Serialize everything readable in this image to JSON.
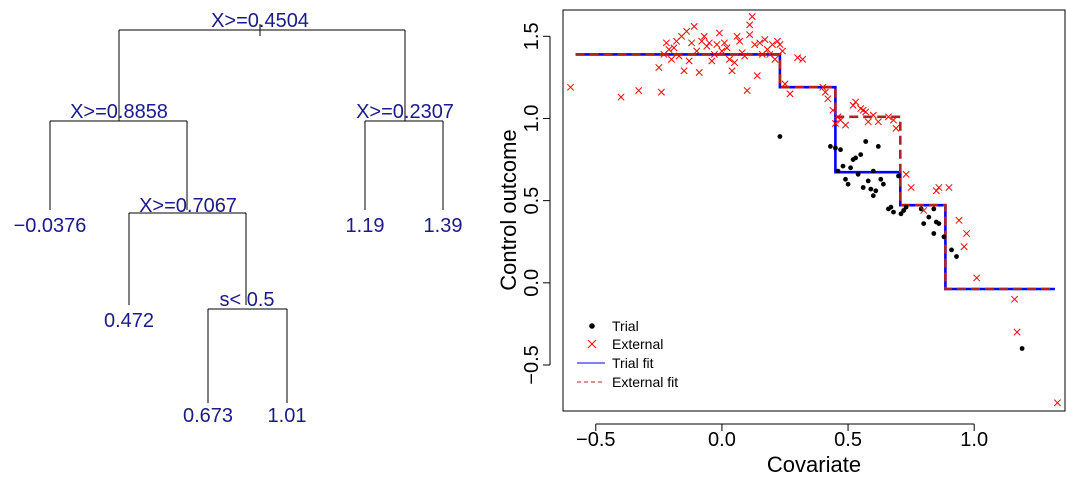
{
  "chart_data": [
    {
      "type": "tree",
      "splits": [
        {
          "id": "n1",
          "label": "X>=0.4504"
        },
        {
          "id": "n2",
          "label": "X>=0.8858"
        },
        {
          "id": "n3",
          "label": "X>=0.2307"
        },
        {
          "id": "n4",
          "label": "X>=0.7067"
        },
        {
          "id": "n5",
          "label": "s< 0.5"
        }
      ],
      "leaves": [
        {
          "id": "l1",
          "label": "−0.0376"
        },
        {
          "id": "l2",
          "label": "0.472"
        },
        {
          "id": "l3",
          "label": "0.673"
        },
        {
          "id": "l4",
          "label": "1.01"
        },
        {
          "id": "l5",
          "label": "1.19"
        },
        {
          "id": "l6",
          "label": "1.39"
        }
      ],
      "colors": {
        "label": "#1a1a8c",
        "lines": "#000000"
      }
    },
    {
      "type": "scatter",
      "xlabel": "Covariate",
      "ylabel": "Control outcome",
      "xlim": [
        -0.63,
        1.36
      ],
      "ylim": [
        -0.78,
        1.66
      ],
      "xticks": [
        -0.5,
        0.0,
        0.5,
        1.0
      ],
      "xtick_labels": [
        "−0.5",
        "0.0",
        "0.5",
        "1.0"
      ],
      "yticks": [
        -0.5,
        0.0,
        0.5,
        1.0,
        1.5
      ],
      "ytick_labels": [
        "−0.5",
        "0.0",
        "0.5",
        "1.0",
        "1.5"
      ],
      "grid": false,
      "legend_position": "bottom-left",
      "legend": [
        {
          "label": "Trial",
          "marker": "dot",
          "color": "#000000"
        },
        {
          "label": "External",
          "marker": "cross",
          "color": "#ff0000"
        },
        {
          "label": "Trial fit",
          "marker": "line-solid",
          "color": "#0000ff"
        },
        {
          "label": "External fit",
          "marker": "line-dashed",
          "color": "#b22222"
        }
      ],
      "series": [
        {
          "name": "Trial",
          "marker": "dot",
          "color": "#000000",
          "points": [
            [
              0.23,
              0.89
            ],
            [
              0.43,
              0.83
            ],
            [
              0.45,
              0.82
            ],
            [
              0.46,
              0.68
            ],
            [
              0.47,
              0.81
            ],
            [
              0.48,
              0.71
            ],
            [
              0.49,
              0.63
            ],
            [
              0.5,
              0.6
            ],
            [
              0.51,
              0.7
            ],
            [
              0.52,
              0.75
            ],
            [
              0.53,
              0.76
            ],
            [
              0.54,
              0.66
            ],
            [
              0.55,
              0.78
            ],
            [
              0.56,
              0.58
            ],
            [
              0.57,
              0.86
            ],
            [
              0.58,
              0.62
            ],
            [
              0.59,
              0.57
            ],
            [
              0.6,
              0.68
            ],
            [
              0.6,
              0.53
            ],
            [
              0.61,
              0.56
            ],
            [
              0.62,
              0.83
            ],
            [
              0.63,
              0.63
            ],
            [
              0.64,
              0.6
            ],
            [
              0.66,
              0.45
            ],
            [
              0.67,
              0.46
            ],
            [
              0.68,
              0.43
            ],
            [
              0.7,
              0.65
            ],
            [
              0.71,
              0.42
            ],
            [
              0.72,
              0.44
            ],
            [
              0.73,
              0.46
            ],
            [
              0.79,
              0.45
            ],
            [
              0.8,
              0.36
            ],
            [
              0.82,
              0.4
            ],
            [
              0.84,
              0.3
            ],
            [
              0.84,
              0.45
            ],
            [
              0.85,
              0.37
            ],
            [
              0.86,
              0.36
            ],
            [
              0.88,
              0.28
            ],
            [
              0.91,
              0.2
            ],
            [
              0.93,
              0.16
            ],
            [
              1.19,
              -0.4
            ]
          ]
        },
        {
          "name": "External",
          "marker": "cross",
          "color": "#ff0000",
          "points": [
            [
              -0.6,
              1.19
            ],
            [
              -0.4,
              1.13
            ],
            [
              -0.33,
              1.17
            ],
            [
              -0.25,
              1.31
            ],
            [
              -0.24,
              1.16
            ],
            [
              -0.23,
              1.39
            ],
            [
              -0.22,
              1.46
            ],
            [
              -0.21,
              1.42
            ],
            [
              -0.2,
              1.36
            ],
            [
              -0.19,
              1.43
            ],
            [
              -0.18,
              1.47
            ],
            [
              -0.17,
              1.38
            ],
            [
              -0.16,
              1.5
            ],
            [
              -0.15,
              1.29
            ],
            [
              -0.14,
              1.53
            ],
            [
              -0.13,
              1.35
            ],
            [
              -0.12,
              1.46
            ],
            [
              -0.11,
              1.56
            ],
            [
              -0.1,
              1.41
            ],
            [
              -0.09,
              1.28
            ],
            [
              -0.08,
              1.47
            ],
            [
              -0.07,
              1.5
            ],
            [
              -0.06,
              1.44
            ],
            [
              -0.05,
              1.46
            ],
            [
              -0.04,
              1.35
            ],
            [
              -0.03,
              1.39
            ],
            [
              -0.02,
              1.45
            ],
            [
              -0.01,
              1.52
            ],
            [
              0.0,
              1.41
            ],
            [
              0.01,
              1.46
            ],
            [
              0.02,
              1.43
            ],
            [
              0.03,
              1.36
            ],
            [
              0.04,
              1.29
            ],
            [
              0.05,
              1.34
            ],
            [
              0.06,
              1.5
            ],
            [
              0.07,
              1.47
            ],
            [
              0.08,
              1.4
            ],
            [
              0.09,
              1.38
            ],
            [
              0.1,
              1.17
            ],
            [
              0.11,
              1.57
            ],
            [
              0.11,
              1.51
            ],
            [
              0.12,
              1.62
            ],
            [
              0.13,
              1.45
            ],
            [
              0.14,
              1.26
            ],
            [
              0.15,
              1.46
            ],
            [
              0.16,
              1.39
            ],
            [
              0.17,
              1.48
            ],
            [
              0.18,
              1.42
            ],
            [
              0.19,
              1.39
            ],
            [
              0.2,
              1.45
            ],
            [
              0.21,
              1.36
            ],
            [
              0.22,
              1.47
            ],
            [
              0.23,
              1.45
            ],
            [
              0.24,
              1.41
            ],
            [
              0.25,
              1.21
            ],
            [
              0.27,
              1.15
            ],
            [
              0.3,
              1.37
            ],
            [
              0.32,
              1.36
            ],
            [
              0.4,
              1.19
            ],
            [
              0.41,
              1.16
            ],
            [
              0.42,
              1.12
            ],
            [
              0.44,
              1.05
            ],
            [
              0.45,
              0.97
            ],
            [
              0.46,
              1.01
            ],
            [
              0.47,
              0.99
            ],
            [
              0.49,
              0.96
            ],
            [
              0.52,
              1.08
            ],
            [
              0.53,
              1.1
            ],
            [
              0.55,
              1.06
            ],
            [
              0.56,
              1.05
            ],
            [
              0.57,
              1.04
            ],
            [
              0.58,
              0.98
            ],
            [
              0.6,
              1.02
            ],
            [
              0.62,
              0.98
            ],
            [
              0.66,
              1.01
            ],
            [
              0.68,
              0.99
            ],
            [
              0.69,
              0.94
            ],
            [
              0.73,
              0.66
            ],
            [
              0.75,
              0.58
            ],
            [
              0.8,
              0.44
            ],
            [
              0.85,
              0.56
            ],
            [
              0.86,
              0.58
            ],
            [
              0.9,
              0.58
            ],
            [
              0.94,
              0.38
            ],
            [
              0.96,
              0.22
            ],
            [
              0.97,
              0.3
            ],
            [
              1.01,
              0.03
            ],
            [
              1.16,
              -0.1
            ],
            [
              1.17,
              -0.3
            ],
            [
              1.33,
              -0.73
            ]
          ]
        },
        {
          "name": "Trial fit",
          "marker": "line-solid",
          "color": "#0000ff",
          "step_points": [
            [
              -0.58,
              1.39
            ],
            [
              0.23,
              1.39
            ],
            [
              0.23,
              1.19
            ],
            [
              0.45,
              1.19
            ],
            [
              0.45,
              0.673
            ],
            [
              0.707,
              0.673
            ],
            [
              0.707,
              0.472
            ],
            [
              0.886,
              0.472
            ],
            [
              0.886,
              -0.0376
            ],
            [
              1.32,
              -0.0376
            ]
          ]
        },
        {
          "name": "External fit",
          "marker": "line-dashed",
          "color": "#b22222",
          "step_points": [
            [
              -0.58,
              1.39
            ],
            [
              0.23,
              1.39
            ],
            [
              0.23,
              1.19
            ],
            [
              0.45,
              1.19
            ],
            [
              0.45,
              1.01
            ],
            [
              0.707,
              1.01
            ],
            [
              0.707,
              0.472
            ],
            [
              0.886,
              0.472
            ],
            [
              0.886,
              -0.0376
            ],
            [
              1.32,
              -0.0376
            ]
          ]
        }
      ]
    }
  ]
}
